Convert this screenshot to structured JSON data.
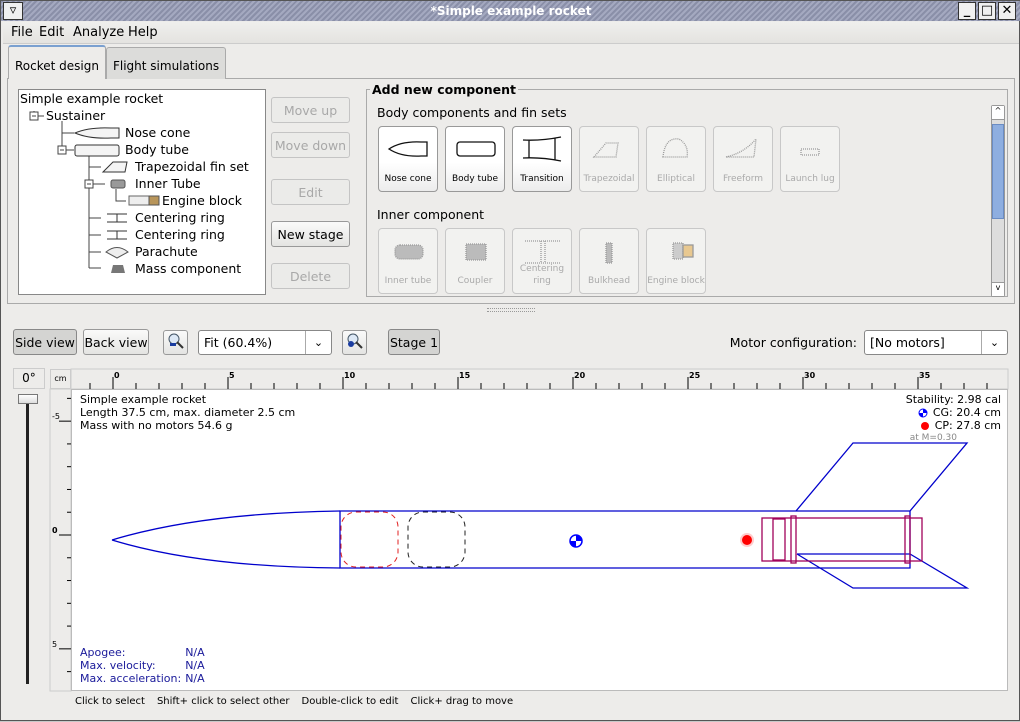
{
  "window": {
    "title": "*Simple example rocket",
    "buttons": {
      "minimize": "_",
      "maximize": "□",
      "close": "✕"
    }
  },
  "menu": [
    {
      "label": "File"
    },
    {
      "label": "Edit"
    },
    {
      "label": "Analyze"
    },
    {
      "label": "Help"
    }
  ],
  "tabs": [
    {
      "label": "Rocket design",
      "active": true
    },
    {
      "label": "Flight simulations",
      "active": false
    }
  ],
  "tree": {
    "root": "Simple example rocket",
    "items": [
      "Sustainer",
      "Nose cone",
      "Body tube",
      "Trapezoidal fin set",
      "Inner Tube",
      "Engine block",
      "Centering ring",
      "Centering ring",
      "Parachute",
      "Mass component"
    ]
  },
  "tree_buttons": {
    "move_up": "Move up",
    "move_down": "Move down",
    "edit": "Edit",
    "new_stage": "New stage",
    "delete": "Delete"
  },
  "add_component": {
    "title": "Add new component",
    "body_section": "Body components and fin sets",
    "body": [
      {
        "label": "Nose cone",
        "enabled": true
      },
      {
        "label": "Body tube",
        "enabled": true
      },
      {
        "label": "Transition",
        "enabled": true
      },
      {
        "label": "Trapezoidal",
        "enabled": false
      },
      {
        "label": "Elliptical",
        "enabled": false
      },
      {
        "label": "Freeform",
        "enabled": false
      },
      {
        "label": "Launch lug",
        "enabled": false
      }
    ],
    "inner_section": "Inner component",
    "inner": [
      {
        "label": "Inner tube",
        "enabled": false
      },
      {
        "label": "Coupler",
        "enabled": false
      },
      {
        "label": "Centering ring",
        "enabled": false
      },
      {
        "label": "Bulkhead",
        "enabled": false
      },
      {
        "label": "Engine block",
        "enabled": false
      }
    ]
  },
  "view_toolbar": {
    "side_view": "Side view",
    "back_view": "Back view",
    "zoom_in_icon": "magnifier-minus-icon",
    "zoom": "Fit (60.4%)",
    "zoom_out_icon": "magnifier-plus-icon",
    "stage": "Stage 1",
    "motor_label": "Motor configuration:",
    "motor_value": "[No motors]"
  },
  "rotation": {
    "label": "0°"
  },
  "ruler": {
    "unit": "cm",
    "x_labels": [
      "0",
      "5",
      "10",
      "15",
      "20",
      "25",
      "30",
      "35"
    ],
    "y_labels": [
      "-5",
      "0",
      "5"
    ]
  },
  "figure": {
    "name": "Simple example rocket",
    "dims": "Length 37.5 cm, max. diameter 2.5 cm",
    "mass": "Mass with no motors 54.6 g",
    "stability": "Stability: 2.98 cal",
    "cg": "CG: 20.4 cm",
    "cp": "CP: 27.8 cm",
    "mach": "at M=0.30",
    "colors": {
      "body": "#0000cc",
      "inner": "#a0005a",
      "cp": "#ff0000",
      "cg": "#0000ff"
    }
  },
  "flight": [
    {
      "label": "Apogee:",
      "value": "N/A"
    },
    {
      "label": "Max. velocity:",
      "value": "N/A"
    },
    {
      "label": "Max. acceleration:",
      "value": "N/A"
    }
  ],
  "hints": [
    "Click to select",
    "Shift+ click to select other",
    "Double-click to edit",
    "Click+ drag to move"
  ]
}
